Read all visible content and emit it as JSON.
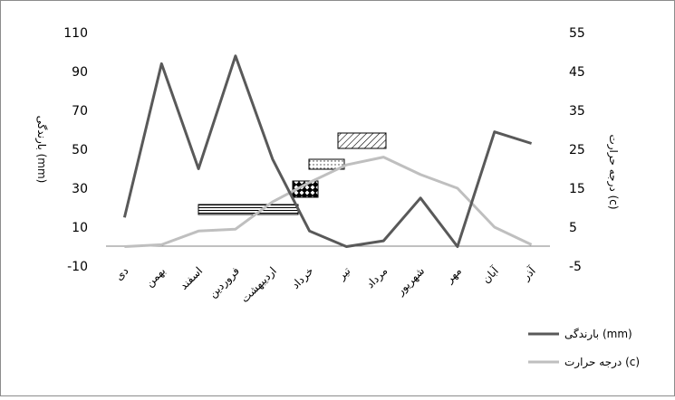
{
  "chart_data": {
    "type": "line",
    "categories": [
      "دی",
      "بهمن",
      "اسفند",
      "فروردین",
      "اردیبهشت",
      "خرداد",
      "تیر",
      "مرداد",
      "شهریور",
      "مهر",
      "آبان",
      "آذر"
    ],
    "series": [
      {
        "name": "بارندگی (mm)",
        "axis": "left",
        "color": "#595959",
        "values": [
          15,
          94,
          40,
          98,
          45,
          8,
          0,
          3,
          25,
          0,
          59,
          53
        ]
      },
      {
        "name": "درجه حرارت (c)",
        "axis": "right",
        "color": "#bfbfbf",
        "values": [
          0,
          0.5,
          4,
          4.5,
          11.5,
          16.5,
          21,
          23,
          18.5,
          15,
          5,
          0.5
        ]
      }
    ],
    "ylabel": "بارندگی (mm)",
    "y2label": "درجه حرارت (c)",
    "ylim": [
      -10,
      110
    ],
    "yticks": [
      "110",
      "90",
      "70",
      "50",
      "30",
      "10",
      "-10"
    ],
    "y2lim": [
      -5,
      55
    ],
    "y2ticks": [
      "55",
      "45",
      "35",
      "25",
      "15",
      "5",
      "-5"
    ],
    "legend_position": "bottom-right",
    "grid": false
  }
}
